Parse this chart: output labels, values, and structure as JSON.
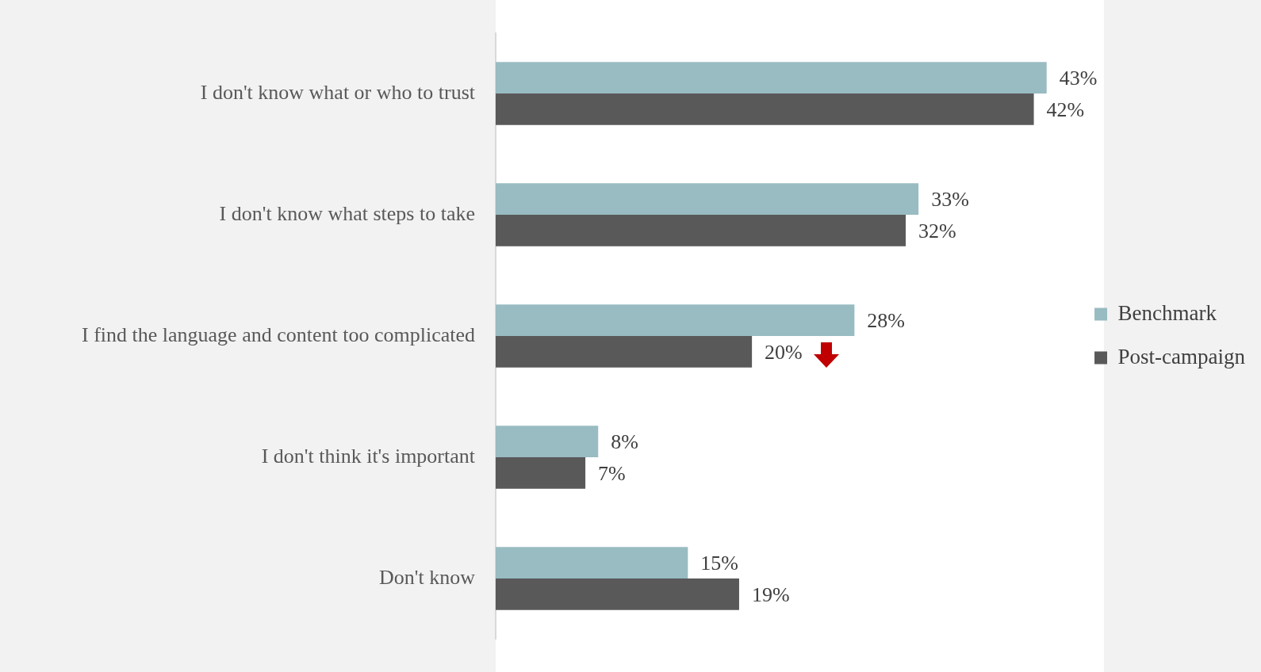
{
  "chart_data": {
    "type": "bar",
    "orientation": "horizontal",
    "categories": [
      "I don't know what or who to trust",
      "I don't know what steps to take",
      "I find the language and content too complicated",
      "I don't think it's important",
      "Don't know"
    ],
    "series": [
      {
        "name": "Benchmark",
        "color": "#99bbc2",
        "values": [
          43,
          33,
          28,
          8,
          15
        ],
        "value_labels": [
          "43%",
          "33%",
          "28%",
          "8%",
          "15%"
        ]
      },
      {
        "name": "Post-campaign",
        "color": "#595959",
        "values": [
          42,
          32,
          20,
          7,
          19
        ],
        "value_labels": [
          "42%",
          "32%",
          "20%",
          "7%",
          "19%"
        ]
      }
    ],
    "legend": "right",
    "grid": false,
    "tick_labels": "y"
  }
}
